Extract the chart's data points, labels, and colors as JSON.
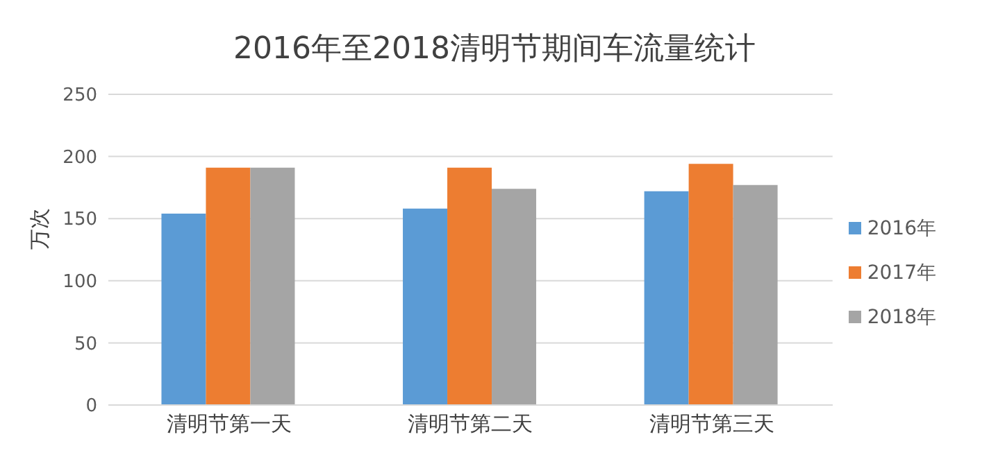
{
  "chart_data": {
    "type": "bar",
    "title": "2016年至2018清明节期间车流量统计",
    "ylabel": "万次",
    "categories": [
      "清明节第一天",
      "清明节第二天",
      "清明节第三天"
    ],
    "series": [
      {
        "name": "2016年",
        "color": "#5b9bd5",
        "values": [
          154,
          158,
          172
        ]
      },
      {
        "name": "2017年",
        "color": "#ed7d31",
        "values": [
          191,
          191,
          194
        ]
      },
      {
        "name": "2018年",
        "color": "#a5a5a5",
        "values": [
          191,
          174,
          177
        ]
      }
    ],
    "ylim": [
      0,
      250
    ],
    "yticks": [
      0,
      50,
      100,
      150,
      200,
      250
    ],
    "grid": "y",
    "legend": "right"
  }
}
